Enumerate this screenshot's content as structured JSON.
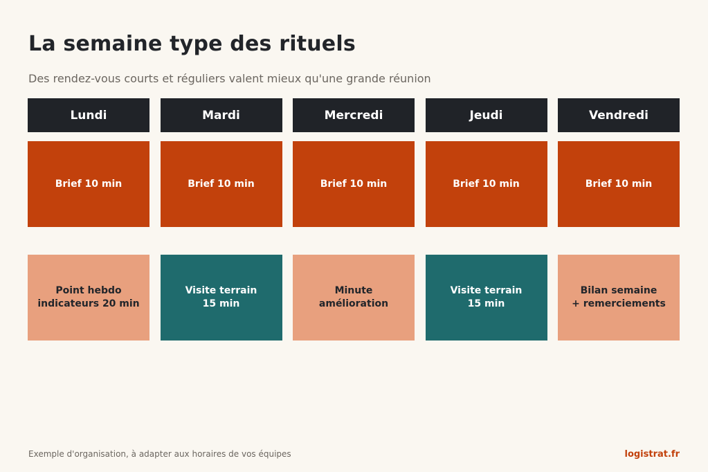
{
  "title": "La semaine type des rituels",
  "subtitle": "Des rendez-vous courts et réguliers valent mieux qu'une grande réunion",
  "days": [
    {
      "name": "Lundi",
      "first": "Brief 10 min",
      "second": "Point hebdo\nindicateurs 20 min",
      "second_style": "light"
    },
    {
      "name": "Mardi",
      "first": "Brief 10 min",
      "second": "Visite terrain\n15 min",
      "second_style": "teal"
    },
    {
      "name": "Mercredi",
      "first": "Brief 10 min",
      "second": "Minute\namélioration",
      "second_style": "light"
    },
    {
      "name": "Jeudi",
      "first": "Brief 10 min",
      "second": "Visite terrain\n15 min",
      "second_style": "teal"
    },
    {
      "name": "Vendredi",
      "first": "Brief 10 min",
      "second": "Bilan semaine\n+ remerciements",
      "second_style": "light"
    }
  ],
  "colors": {
    "header_bg": "#202328",
    "brief_bg": "#c2410c",
    "light_bg": "#e8a07e",
    "teal_bg": "#1f6b6d",
    "page_bg": "#faf7f1",
    "brand": "#c2410c"
  },
  "footer": {
    "note": "Exemple d'organisation, à adapter aux horaires de vos équipes",
    "brand": "logistrat.fr"
  }
}
